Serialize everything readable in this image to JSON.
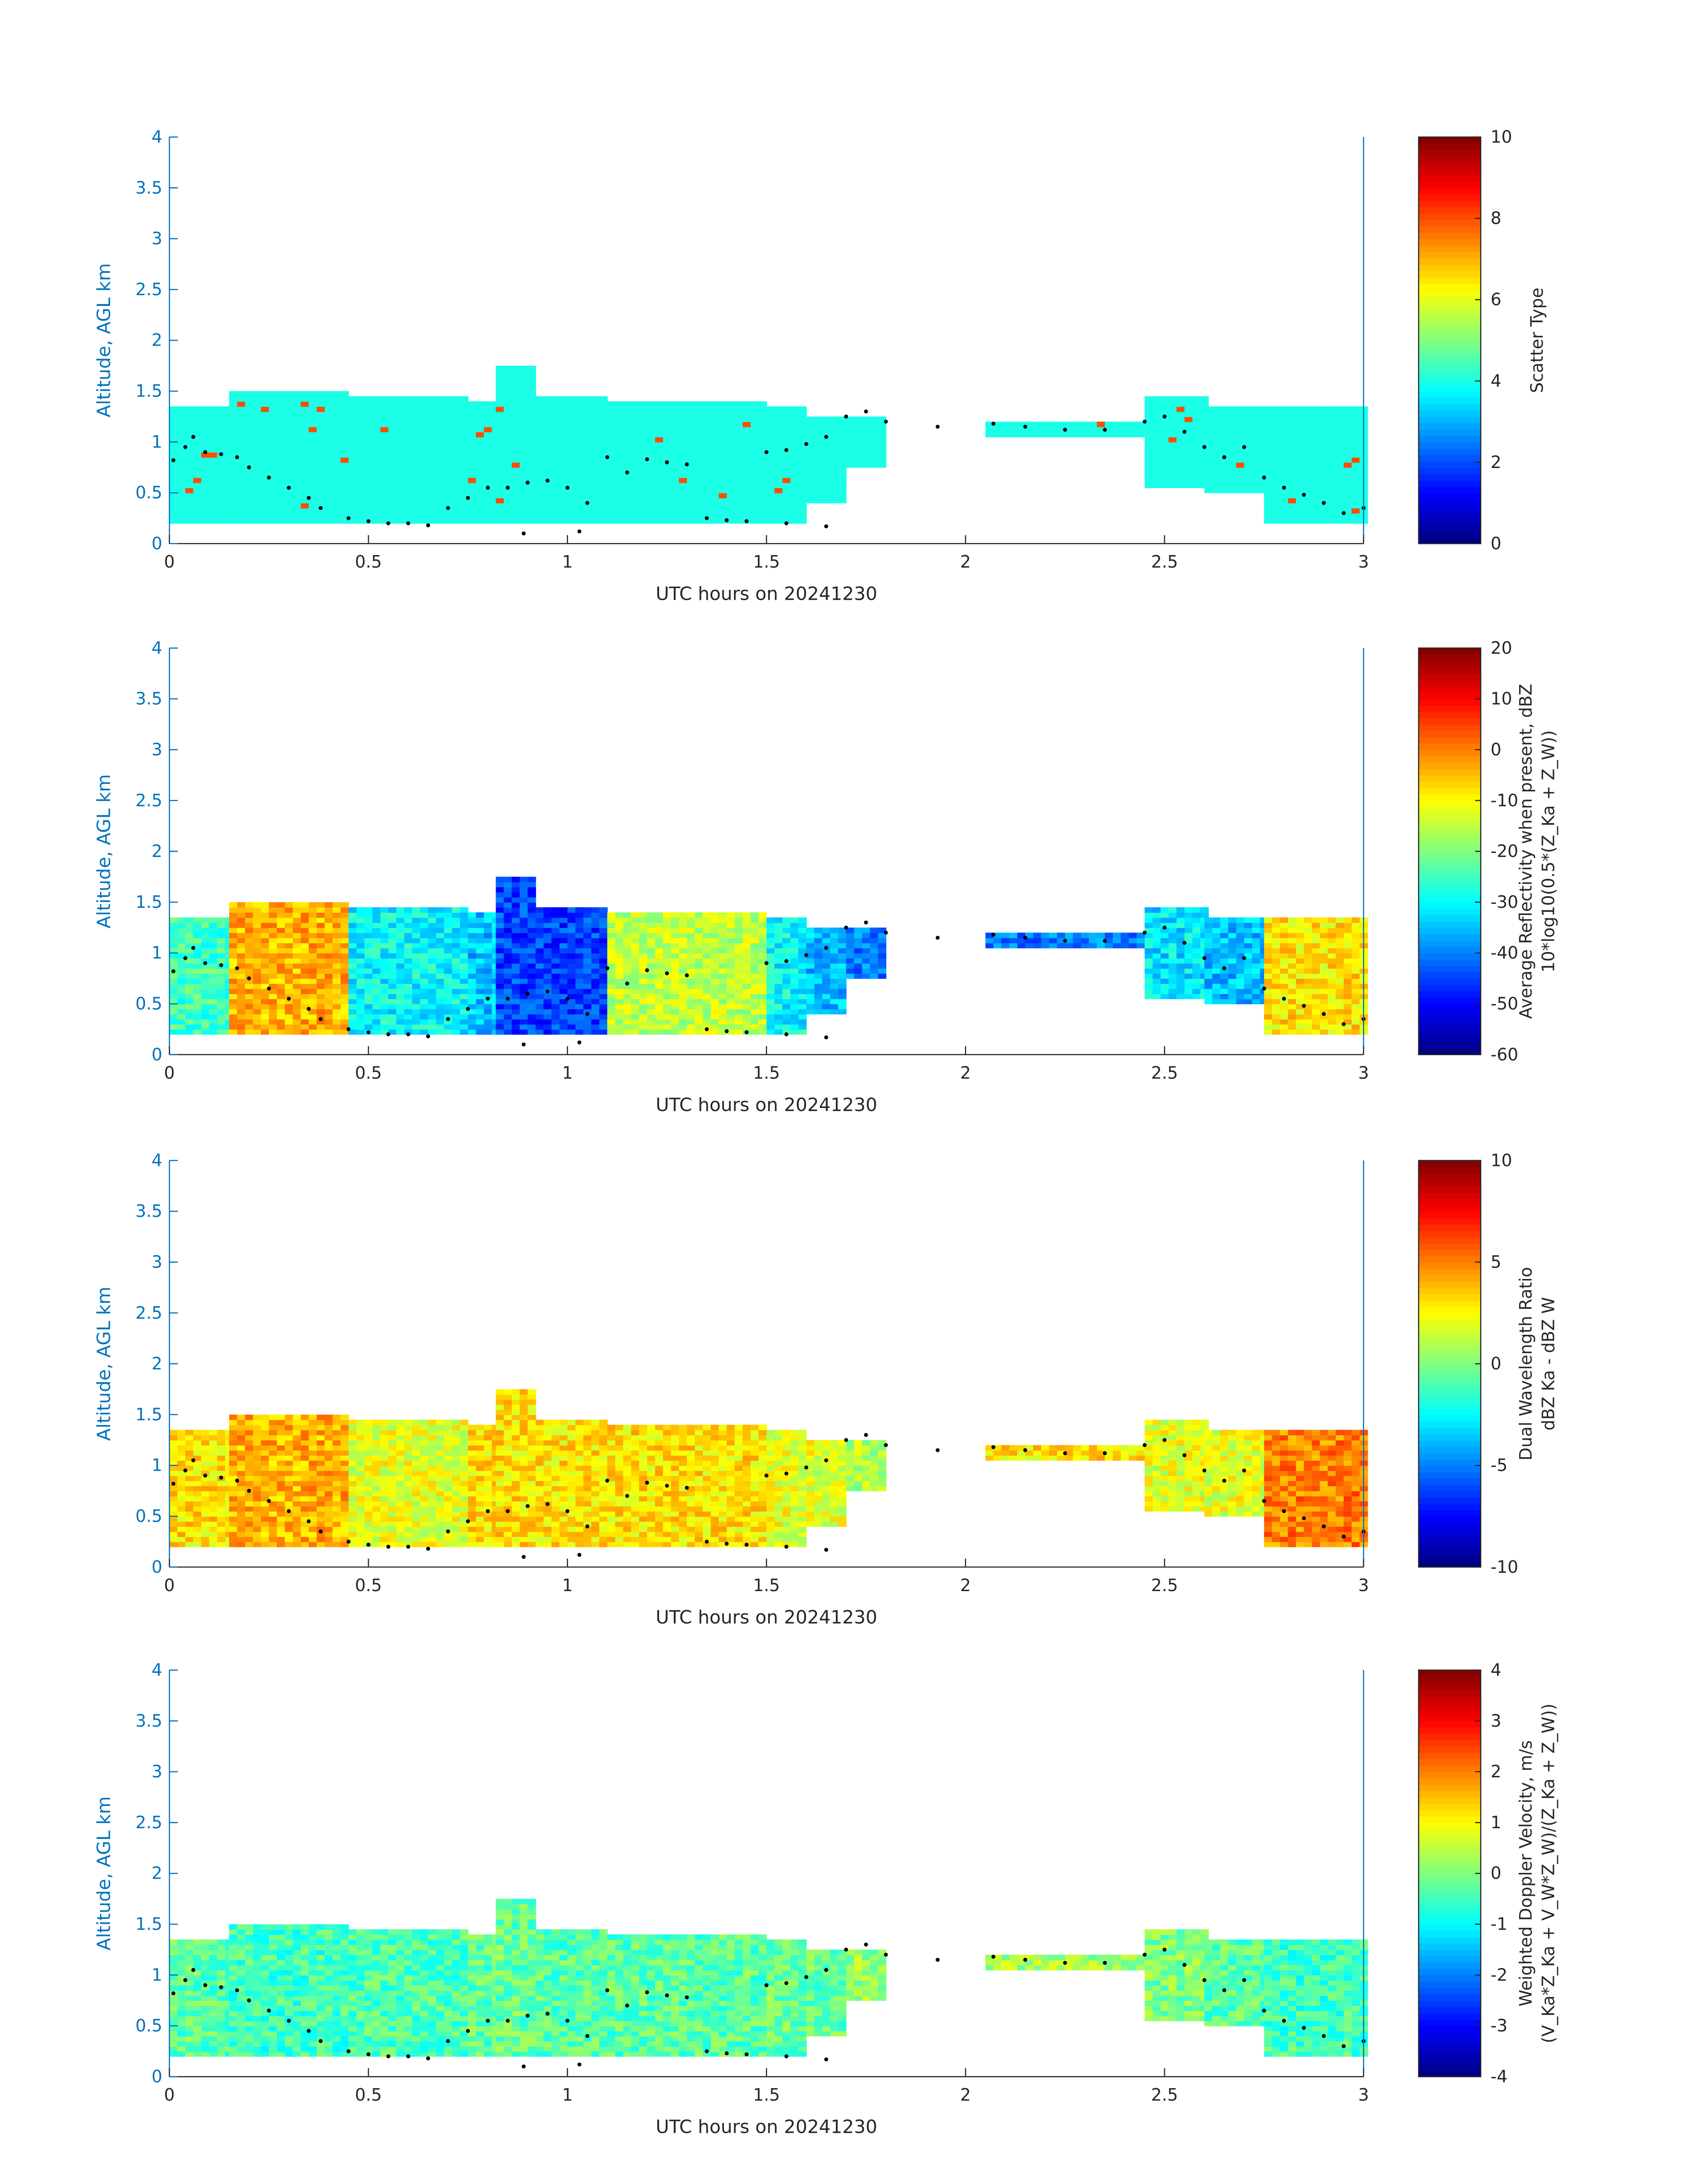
{
  "chart_data": {
    "type": "heatmap",
    "xlabel": "UTC hours on 20241230",
    "ylabel": "Altitude, AGL km",
    "xlim": [
      0,
      3
    ],
    "ylim": [
      0,
      4
    ],
    "xticks": [
      "0",
      "0.5",
      "1",
      "1.5",
      "2",
      "2.5",
      "3"
    ],
    "yticks": [
      "0",
      "0.5",
      "1",
      "1.5",
      "2",
      "2.5",
      "3",
      "3.5",
      "4"
    ],
    "accent_color": "#0072BD",
    "colormap": "jet",
    "panels": [
      {
        "colorbar_label": [
          "Scatter Type"
        ],
        "clim": [
          0,
          10
        ],
        "cticks": [
          "0",
          "2",
          "4",
          "6",
          "8",
          "10"
        ]
      },
      {
        "colorbar_label": [
          "Average Reflectivity when present, dBZ",
          "10*log10(0.5*(Z_Ka + Z_W))"
        ],
        "clim": [
          -60,
          20
        ],
        "cticks": [
          "-60",
          "-50",
          "-40",
          "-30",
          "-20",
          "-10",
          "0",
          "10",
          "20"
        ]
      },
      {
        "colorbar_label": [
          "Dual Wavelength Ratio",
          "dBZ Ka - dBZ W"
        ],
        "clim": [
          -10,
          10
        ],
        "cticks": [
          "-10",
          "-5",
          "0",
          "5",
          "10"
        ]
      },
      {
        "colorbar_label": [
          "Weighted Doppler Velocity, m/s",
          "(V_Ka*Z_Ka + V_W*Z_W)/(Z_Ka + Z_W))"
        ],
        "clim": [
          -4,
          4
        ],
        "cticks": [
          "-4",
          "-3",
          "-2",
          "-1",
          "0",
          "1",
          "2",
          "3",
          "4"
        ]
      }
    ],
    "cloud_segments_columns": [
      "x_start_h",
      "x_end_h",
      "base_km",
      "top_km",
      "scatter",
      "reflectivity_dBZ",
      "dwr_dB",
      "velocity_ms"
    ],
    "cloud_segments": [
      [
        0,
        0.15,
        0.2,
        1.33,
        4,
        -25,
        3,
        -0.3
      ],
      [
        0.15,
        0.45,
        0.2,
        1.48,
        4,
        -4,
        4,
        -0.5
      ],
      [
        0.45,
        0.75,
        0.2,
        1.43,
        4,
        -30,
        2,
        -0.4
      ],
      [
        0.75,
        0.82,
        0.2,
        1.4,
        4,
        -35,
        3,
        -0.3
      ],
      [
        0.82,
        0.92,
        0.2,
        1.75,
        4,
        -45,
        3,
        -0.2
      ],
      [
        0.92,
        1.1,
        0.2,
        1.42,
        4,
        -45,
        3,
        -0.3
      ],
      [
        1.1,
        1.5,
        0.2,
        1.38,
        4,
        -15,
        3,
        -0.3
      ],
      [
        1.5,
        1.6,
        0.2,
        1.35,
        4,
        -30,
        2,
        -0.2
      ],
      [
        1.6,
        1.7,
        0.4,
        1.25,
        4,
        -35,
        2,
        -0.2
      ],
      [
        1.7,
        1.8,
        0.75,
        1.25,
        4,
        -40,
        1,
        0.2
      ],
      [
        2.05,
        2.45,
        1.05,
        1.2,
        4,
        -40,
        3,
        0.3
      ],
      [
        2.45,
        2.6,
        0.55,
        1.42,
        4,
        -32,
        2,
        0
      ],
      [
        2.6,
        2.75,
        0.5,
        1.33,
        4,
        -35,
        2,
        -0.3
      ],
      [
        2.75,
        3.0,
        0.2,
        1.33,
        4,
        -8,
        5,
        -0.5
      ]
    ],
    "cloud_base_points": [
      [
        0.01,
        0.82
      ],
      [
        0.04,
        0.95
      ],
      [
        0.06,
        1.05
      ],
      [
        0.09,
        0.9
      ],
      [
        0.13,
        0.88
      ],
      [
        0.17,
        0.85
      ],
      [
        0.2,
        0.75
      ],
      [
        0.25,
        0.65
      ],
      [
        0.3,
        0.55
      ],
      [
        0.35,
        0.45
      ],
      [
        0.38,
        0.35
      ],
      [
        0.45,
        0.25
      ],
      [
        0.5,
        0.22
      ],
      [
        0.55,
        0.2
      ],
      [
        0.6,
        0.2
      ],
      [
        0.65,
        0.18
      ],
      [
        0.7,
        0.35
      ],
      [
        0.75,
        0.45
      ],
      [
        0.8,
        0.55
      ],
      [
        0.85,
        0.55
      ],
      [
        0.9,
        0.6
      ],
      [
        0.95,
        0.62
      ],
      [
        1.0,
        0.55
      ],
      [
        1.05,
        0.4
      ],
      [
        1.1,
        0.85
      ],
      [
        1.15,
        0.7
      ],
      [
        1.2,
        0.83
      ],
      [
        1.25,
        0.8
      ],
      [
        1.3,
        0.78
      ],
      [
        1.35,
        0.25
      ],
      [
        1.4,
        0.23
      ],
      [
        1.45,
        0.22
      ],
      [
        1.5,
        0.9
      ],
      [
        1.55,
        0.92
      ],
      [
        1.6,
        0.98
      ],
      [
        1.65,
        1.05
      ],
      [
        1.7,
        1.25
      ],
      [
        1.75,
        1.3
      ],
      [
        1.8,
        1.2
      ],
      [
        1.93,
        1.15
      ],
      [
        2.07,
        1.18
      ],
      [
        2.15,
        1.15
      ],
      [
        2.25,
        1.12
      ],
      [
        2.35,
        1.12
      ],
      [
        2.45,
        1.2
      ],
      [
        2.5,
        1.25
      ],
      [
        2.55,
        1.1
      ],
      [
        2.6,
        0.95
      ],
      [
        2.65,
        0.85
      ],
      [
        2.7,
        0.95
      ],
      [
        2.75,
        0.65
      ],
      [
        2.8,
        0.55
      ],
      [
        2.85,
        0.48
      ],
      [
        2.9,
        0.4
      ],
      [
        2.95,
        0.3
      ],
      [
        3.0,
        0.35
      ],
      [
        0.89,
        0.1
      ],
      [
        1.03,
        0.12
      ],
      [
        1.55,
        0.2
      ],
      [
        1.65,
        0.17
      ]
    ]
  }
}
